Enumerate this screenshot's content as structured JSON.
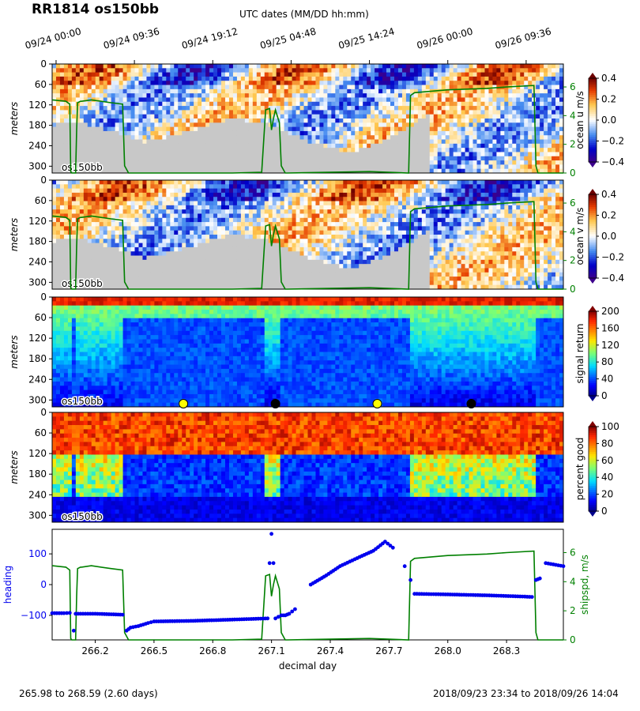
{
  "title": "RR1814 os150bb",
  "top_axis": {
    "title": "UTC dates (MM/DD hh:mm)",
    "ticks": [
      "09/24 00:00",
      "09/24 09:36",
      "09/24 19:12",
      "09/25 04:48",
      "09/25 14:24",
      "09/26 00:00",
      "09/26 09:36"
    ],
    "tick_days": [
      266.0,
      266.4,
      266.8,
      267.2,
      267.6,
      268.0,
      268.4
    ]
  },
  "footer": {
    "left": "265.98 to 268.59 (2.60 days)",
    "right": "2018/09/23 23:34 to 2018/09/26 14:04"
  },
  "colors": {
    "ship_speed": "#008000",
    "heading": "#0000ee",
    "bathymetry": "#c8c8c8",
    "sun_up": "#ffff00",
    "sun_down": "#000000"
  },
  "chart_data": [
    {
      "type": "heatmap",
      "name": "ocean u",
      "ylabel": "meters",
      "yticks": [
        "0",
        "60",
        "120",
        "180",
        "240",
        "300"
      ],
      "ylim": [
        320,
        0
      ],
      "inset_label": "os150bb",
      "colorbar": {
        "label": "ocean u m/s",
        "ticks": [
          "0.4",
          "0.2",
          "0.0",
          "−0.2",
          "−0.4"
        ],
        "range": [
          -0.4,
          0.4
        ],
        "colormap": "blue-white-red"
      },
      "right_axis": {
        "label": "",
        "ticks": [
          "6",
          "4",
          "2",
          "0"
        ]
      }
    },
    {
      "type": "heatmap",
      "name": "ocean v",
      "ylabel": "meters",
      "yticks": [
        "0",
        "60",
        "120",
        "180",
        "240",
        "300"
      ],
      "ylim": [
        320,
        0
      ],
      "inset_label": "os150bb",
      "colorbar": {
        "label": "ocean v m/s",
        "ticks": [
          "0.4",
          "0.2",
          "0.0",
          "−0.2",
          "−0.4"
        ],
        "range": [
          -0.4,
          0.4
        ],
        "colormap": "blue-white-red"
      },
      "right_axis": {
        "label": "",
        "ticks": [
          "6",
          "4",
          "2",
          "0"
        ]
      }
    },
    {
      "type": "heatmap",
      "name": "signal return",
      "ylabel": "meters",
      "yticks": [
        "0",
        "60",
        "120",
        "180",
        "240",
        "300"
      ],
      "ylim": [
        320,
        0
      ],
      "inset_label": "os150bb",
      "colorbar": {
        "label": "signal return",
        "ticks": [
          "200",
          "160",
          "120",
          "80",
          "40",
          "0"
        ],
        "range": [
          0,
          200
        ],
        "colormap": "jet"
      },
      "sun_markers": [
        {
          "day": 266.65,
          "kind": "sunrise"
        },
        {
          "day": 267.12,
          "kind": "sunset"
        },
        {
          "day": 267.64,
          "kind": "sunrise"
        },
        {
          "day": 268.12,
          "kind": "sunset"
        }
      ]
    },
    {
      "type": "heatmap",
      "name": "percent good",
      "ylabel": "meters",
      "yticks": [
        "0",
        "60",
        "120",
        "180",
        "240",
        "300"
      ],
      "ylim": [
        320,
        0
      ],
      "inset_label": "os150bb",
      "colorbar": {
        "label": "percent good",
        "ticks": [
          "100",
          "80",
          "60",
          "40",
          "20",
          "0"
        ],
        "range": [
          0,
          100
        ],
        "colormap": "jet"
      }
    },
    {
      "type": "line",
      "name": "heading and ship speed",
      "xlabel": "decimal day",
      "xticks": [
        "266.2",
        "266.5",
        "266.8",
        "267.1",
        "267.4",
        "267.7",
        "268.0",
        "268.3"
      ],
      "xtick_values": [
        266.2,
        266.5,
        266.8,
        267.1,
        267.4,
        267.7,
        268.0,
        268.3
      ],
      "xlim": [
        265.98,
        268.59
      ],
      "ylabel_left": "heading",
      "yticks_left": [
        "100",
        "0",
        "−100"
      ],
      "ylim_left": [
        -180,
        180
      ],
      "ylabel_right": "shipspd, m/s",
      "yticks_right": [
        "6",
        "4",
        "2",
        "0"
      ],
      "ylim_right": [
        0,
        7.6
      ],
      "series": [
        {
          "axis": "right",
          "style": "line",
          "x": [
            265.98,
            266.05,
            266.07,
            266.075,
            266.08,
            266.1,
            266.105,
            266.11,
            266.125,
            266.13,
            266.18,
            266.28,
            266.34,
            266.35,
            266.37,
            266.9,
            267.05,
            267.07,
            267.09,
            267.1,
            267.11,
            267.12,
            267.14,
            267.15,
            267.17,
            267.18,
            267.6,
            267.8,
            267.81,
            267.83,
            268.0,
            268.2,
            268.3,
            268.44,
            268.45,
            268.46,
            268.59
          ],
          "y": [
            5.1,
            5.0,
            4.8,
            0.1,
            0.0,
            0.0,
            3.0,
            4.9,
            5.0,
            5.0,
            5.1,
            4.9,
            4.8,
            0.5,
            0.0,
            0.0,
            0.05,
            4.4,
            4.5,
            3.0,
            3.8,
            4.4,
            3.5,
            0.5,
            0.0,
            0.0,
            0.1,
            0.0,
            5.4,
            5.6,
            5.8,
            5.9,
            6.0,
            6.1,
            0.5,
            0.0,
            0.0
          ]
        },
        {
          "axis": "left",
          "style": "points",
          "x": [
            265.98,
            266.04,
            266.07,
            266.09,
            266.1,
            266.2,
            266.34,
            266.36,
            266.38,
            266.42,
            266.47,
            266.5,
            266.7,
            266.9,
            267.08,
            267.09,
            267.1,
            267.11,
            267.12,
            267.15,
            267.17,
            267.19,
            267.22,
            267.3,
            267.38,
            267.45,
            267.55,
            267.62,
            267.68,
            267.72,
            267.78,
            267.81,
            267.83,
            268.0,
            268.2,
            268.43,
            268.45,
            268.47,
            268.5,
            268.59
          ],
          "y": [
            -93,
            -93,
            -92,
            -150,
            -95,
            -95,
            -98,
            -150,
            -140,
            -135,
            -125,
            -120,
            -118,
            -114,
            -110,
            70,
            165,
            70,
            -110,
            -100,
            -100,
            -95,
            -80,
            0,
            30,
            60,
            90,
            110,
            140,
            120,
            60,
            15,
            -30,
            -32,
            -35,
            -40,
            15,
            20,
            70,
            60
          ]
        }
      ]
    }
  ]
}
